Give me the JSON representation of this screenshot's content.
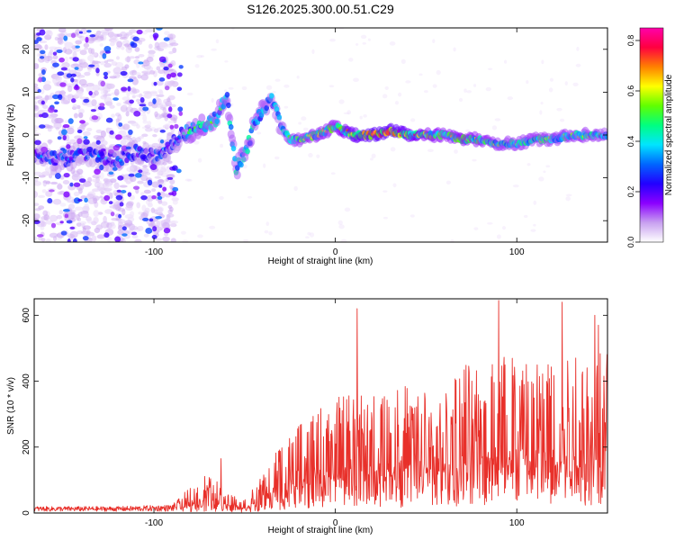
{
  "title": "S126.2025.300.00.51.C29",
  "colors": {
    "snr_line": "#e8302a",
    "frame": "#000000",
    "point_faint": "#c9a6ee",
    "point_mid": "#7a22e0",
    "point_strong": "#4a10d8"
  },
  "chart_data": [
    {
      "type": "heatmap",
      "name": "spectrogram",
      "xlabel": "Height of straight line (km)",
      "ylabel": "Frequency (Hz)",
      "xlim": [
        -166,
        150
      ],
      "ylim": [
        -25,
        25
      ],
      "x_ticks": [
        -100,
        0,
        100
      ],
      "y_ticks": [
        -20,
        -10,
        0,
        10,
        20
      ],
      "colorbar": {
        "label": "Normalized spectral amplitude",
        "range": [
          0,
          0.85
        ],
        "ticks": [
          "0.0",
          "0.2",
          "0.4",
          "0.6",
          "0.8"
        ],
        "tick_values": [
          0,
          0.2,
          0.4,
          0.6,
          0.8
        ],
        "colormap": [
          "#ffffff",
          "#c8a0f0",
          "#8b00ff",
          "#2200ff",
          "#0066ff",
          "#00e5ff",
          "#00ff80",
          "#60ff00",
          "#ffff00",
          "#ff8000",
          "#ff0040",
          "#ff00aa"
        ]
      },
      "ridge": [
        {
          "x": -160,
          "f": -5,
          "a": 0.3
        },
        {
          "x": -150,
          "f": -6,
          "a": 0.35
        },
        {
          "x": -140,
          "f": -4,
          "a": 0.3
        },
        {
          "x": -130,
          "f": -5,
          "a": 0.3
        },
        {
          "x": -120,
          "f": -6,
          "a": 0.32
        },
        {
          "x": -110,
          "f": -4,
          "a": 0.3
        },
        {
          "x": -100,
          "f": -5,
          "a": 0.3
        },
        {
          "x": -92,
          "f": -3,
          "a": 0.3
        },
        {
          "x": -85,
          "f": 0,
          "a": 0.35
        },
        {
          "x": -80,
          "f": 1,
          "a": 0.45
        },
        {
          "x": -72,
          "f": 2,
          "a": 0.5
        },
        {
          "x": -65,
          "f": 4,
          "a": 0.45
        },
        {
          "x": -60,
          "f": 10,
          "a": 0.45
        },
        {
          "x": -55,
          "f": -8,
          "a": 0.45
        },
        {
          "x": -50,
          "f": -5,
          "a": 0.45
        },
        {
          "x": -45,
          "f": 2,
          "a": 0.45
        },
        {
          "x": -40,
          "f": 6,
          "a": 0.45
        },
        {
          "x": -35,
          "f": 8,
          "a": 0.4
        },
        {
          "x": -30,
          "f": 2,
          "a": 0.4
        },
        {
          "x": -25,
          "f": -1,
          "a": 0.45
        },
        {
          "x": -20,
          "f": -1,
          "a": 0.5
        },
        {
          "x": -10,
          "f": 0,
          "a": 0.55
        },
        {
          "x": 0,
          "f": 2,
          "a": 0.55
        },
        {
          "x": 10,
          "f": 0,
          "a": 0.7
        },
        {
          "x": 20,
          "f": 0,
          "a": 0.75
        },
        {
          "x": 30,
          "f": 1,
          "a": 0.75
        },
        {
          "x": 40,
          "f": 0,
          "a": 0.7
        },
        {
          "x": 50,
          "f": 0,
          "a": 0.6
        },
        {
          "x": 60,
          "f": 0,
          "a": 0.55
        },
        {
          "x": 70,
          "f": -1,
          "a": 0.6
        },
        {
          "x": 80,
          "f": -1,
          "a": 0.55
        },
        {
          "x": 90,
          "f": -2,
          "a": 0.5
        },
        {
          "x": 100,
          "f": -2,
          "a": 0.5
        },
        {
          "x": 110,
          "f": -1,
          "a": 0.5
        },
        {
          "x": 120,
          "f": -1,
          "a": 0.5
        },
        {
          "x": 130,
          "f": 0,
          "a": 0.5
        },
        {
          "x": 140,
          "f": 0,
          "a": 0.5
        },
        {
          "x": 148,
          "f": 0,
          "a": 0.45
        }
      ]
    },
    {
      "type": "line",
      "name": "snr",
      "xlabel": "Height of straight line (km)",
      "ylabel": "SNR (10 * v/v)",
      "xlim": [
        -166,
        150
      ],
      "ylim": [
        0,
        650
      ],
      "x_ticks": [
        -100,
        0,
        100
      ],
      "y_ticks": [
        0,
        200,
        400,
        600
      ],
      "envelope": [
        {
          "x": -166,
          "y": 15
        },
        {
          "x": -120,
          "y": 15
        },
        {
          "x": -90,
          "y": 20
        },
        {
          "x": -80,
          "y": 70
        },
        {
          "x": -70,
          "y": 110
        },
        {
          "x": -60,
          "y": 60
        },
        {
          "x": -50,
          "y": 40
        },
        {
          "x": -40,
          "y": 100
        },
        {
          "x": -30,
          "y": 190
        },
        {
          "x": -20,
          "y": 230
        },
        {
          "x": -10,
          "y": 280
        },
        {
          "x": 0,
          "y": 300
        },
        {
          "x": 10,
          "y": 340
        },
        {
          "x": 20,
          "y": 310
        },
        {
          "x": 30,
          "y": 350
        },
        {
          "x": 40,
          "y": 340
        },
        {
          "x": 50,
          "y": 320
        },
        {
          "x": 60,
          "y": 320
        },
        {
          "x": 70,
          "y": 420
        },
        {
          "x": 80,
          "y": 420
        },
        {
          "x": 90,
          "y": 430
        },
        {
          "x": 100,
          "y": 440
        },
        {
          "x": 110,
          "y": 430
        },
        {
          "x": 120,
          "y": 450
        },
        {
          "x": 130,
          "y": 450
        },
        {
          "x": 140,
          "y": 440
        },
        {
          "x": 150,
          "y": 430
        }
      ],
      "peaks": [
        {
          "x": 12,
          "y": 620
        },
        {
          "x": 90,
          "y": 645
        },
        {
          "x": 125,
          "y": 640
        },
        {
          "x": 143,
          "y": 600
        },
        {
          "x": 145,
          "y": 570
        },
        {
          "x": -63,
          "y": 165
        }
      ]
    }
  ]
}
